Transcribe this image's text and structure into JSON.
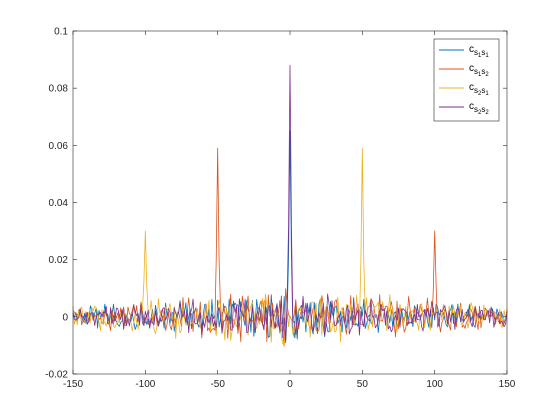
{
  "chart_data": {
    "type": "line",
    "title": "",
    "xlabel": "",
    "ylabel": "",
    "xlim": [
      -150,
      150
    ],
    "ylim": [
      -0.02,
      0.1
    ],
    "xticks": [
      -150,
      -100,
      -50,
      0,
      50,
      100,
      150
    ],
    "xtick_labels": [
      "-150",
      "-100",
      "-50",
      "0",
      "50",
      "100",
      "150"
    ],
    "yticks": [
      -0.02,
      0,
      0.02,
      0.04,
      0.06,
      0.08,
      0.1
    ],
    "ytick_labels": [
      "-0.02",
      "0",
      "0.02",
      "0.04",
      "0.06",
      "0.08",
      "0.1"
    ],
    "grid": false,
    "legend_position": "top-right",
    "legend": [
      {
        "base": "c",
        "sub1": "s",
        "sub1sub": "1",
        "sub2": "s",
        "sub2sub": "1"
      },
      {
        "base": "c",
        "sub1": "s",
        "sub1sub": "1",
        "sub2": "s",
        "sub2sub": "2"
      },
      {
        "base": "c",
        "sub1": "s",
        "sub1sub": "2",
        "sub2": "s",
        "sub2sub": "1"
      },
      {
        "base": "c",
        "sub1": "s",
        "sub1sub": "2",
        "sub2": "s",
        "sub2sub": "2"
      }
    ],
    "series": [
      {
        "name": "c_{s_1 s_1}",
        "color": "#0072BD",
        "noise_amplitude": 0.006,
        "peaks": [
          {
            "x": 0,
            "y": 0.065
          }
        ]
      },
      {
        "name": "c_{s_1 s_2}",
        "color": "#D95319",
        "noise_amplitude": 0.007,
        "peaks": [
          {
            "x": -50,
            "y": 0.059
          },
          {
            "x": 100,
            "y": 0.03
          }
        ]
      },
      {
        "name": "c_{s_2 s_1}",
        "color": "#EDB120",
        "noise_amplitude": 0.007,
        "peaks": [
          {
            "x": -100,
            "y": 0.03
          },
          {
            "x": 50,
            "y": 0.059
          }
        ]
      },
      {
        "name": "c_{s_2 s_2}",
        "color": "#7E2F8E",
        "noise_amplitude": 0.006,
        "peaks": [
          {
            "x": 0,
            "y": 0.088
          }
        ]
      }
    ]
  }
}
